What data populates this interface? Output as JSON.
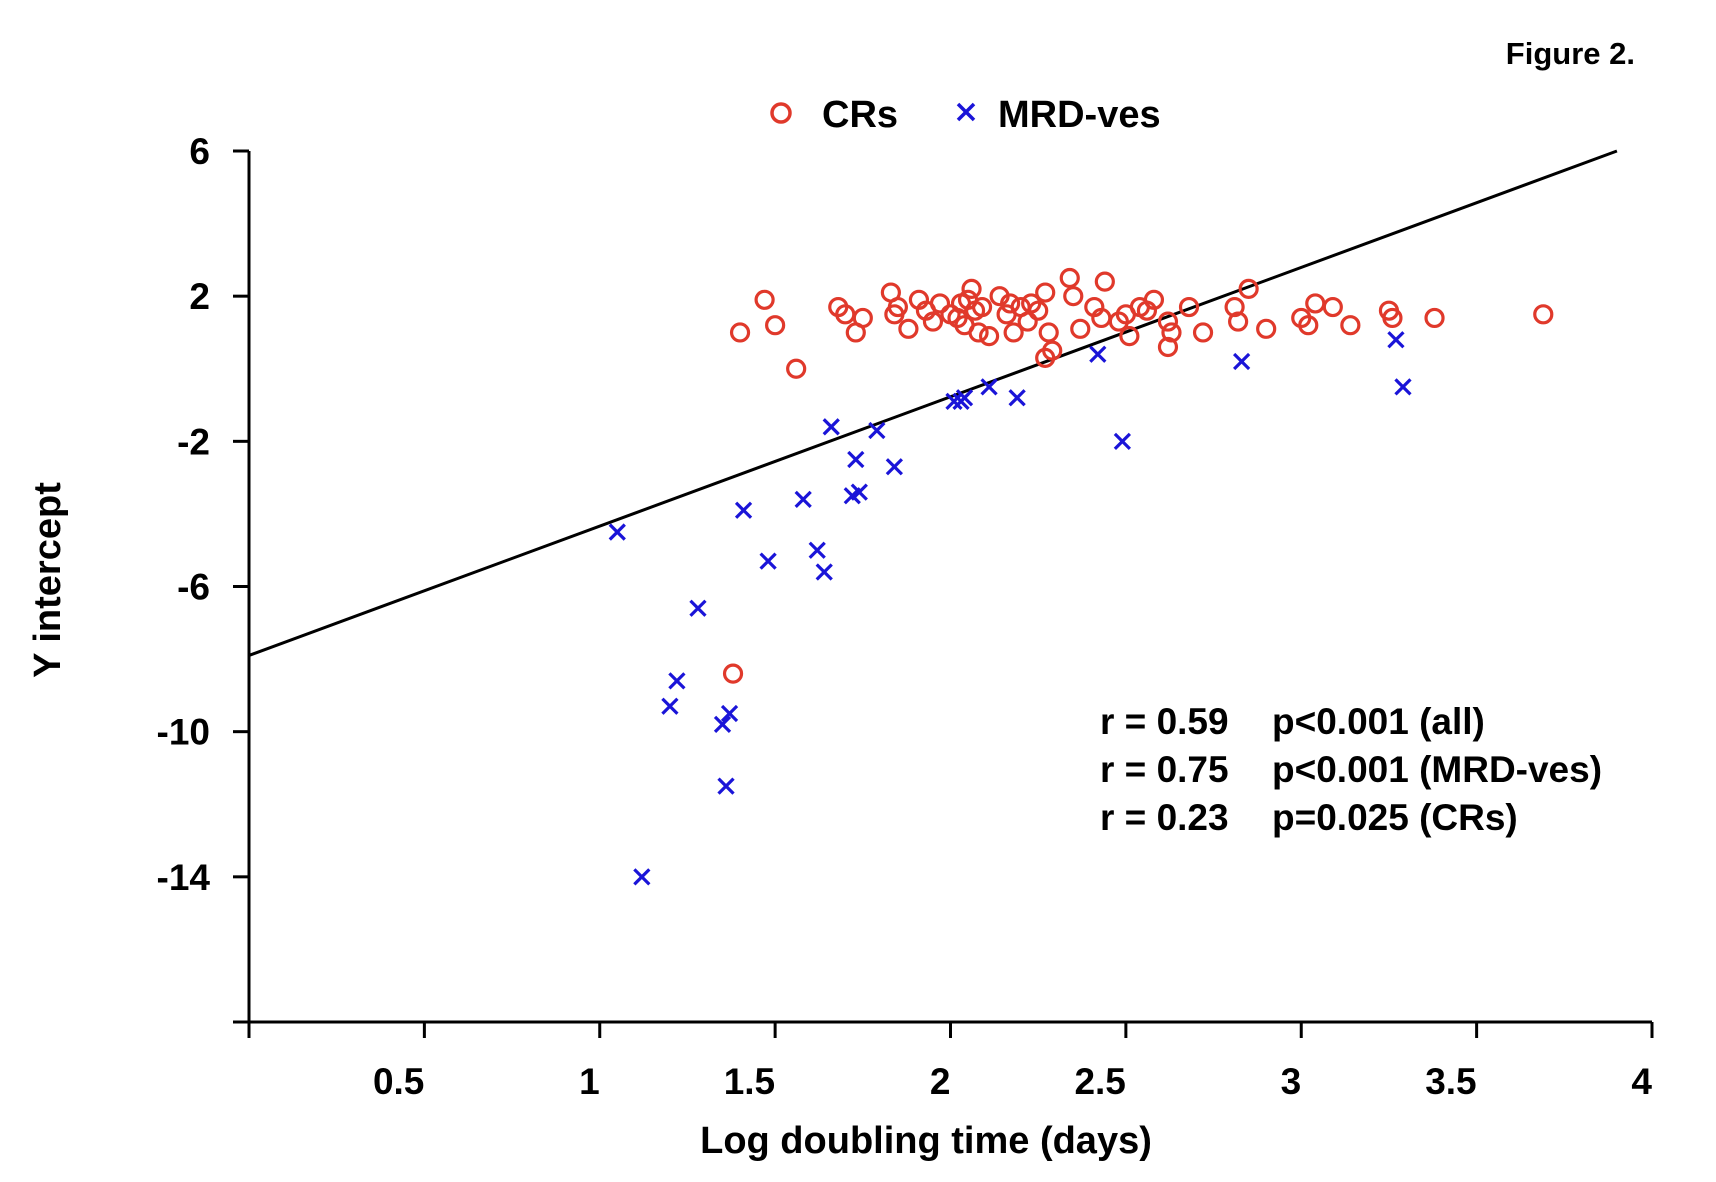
{
  "figure_label": "Figure 2.",
  "chart_data": {
    "type": "scatter",
    "xlabel": "Log doubling time (days)",
    "ylabel": "Y intercept",
    "xlim": [
      0,
      4
    ],
    "ylim": [
      -18,
      6
    ],
    "x_ticks": [
      0,
      0.5,
      1,
      1.5,
      2,
      2.5,
      3,
      3.5,
      4
    ],
    "x_tick_labels": [
      "",
      "0.5",
      "1",
      "1.5",
      "2",
      "2.5",
      "3",
      "3.5",
      "4"
    ],
    "y_ticks": [
      -18,
      -14,
      -10,
      -6,
      -2,
      2,
      6
    ],
    "y_tick_labels": [
      "",
      "-14",
      "-10",
      "-6",
      "-2",
      "2",
      "6"
    ],
    "grid": false,
    "legend_position": "top-center",
    "series": [
      {
        "name": "CRs",
        "marker": "circle",
        "color": "#e0392b",
        "points": [
          [
            1.38,
            -8.4
          ],
          [
            1.4,
            1.0
          ],
          [
            1.47,
            1.9
          ],
          [
            1.5,
            1.2
          ],
          [
            1.56,
            0.0
          ],
          [
            1.68,
            1.7
          ],
          [
            1.7,
            1.5
          ],
          [
            1.73,
            1.0
          ],
          [
            1.75,
            1.4
          ],
          [
            1.83,
            2.1
          ],
          [
            1.84,
            1.5
          ],
          [
            1.85,
            1.7
          ],
          [
            1.88,
            1.1
          ],
          [
            1.91,
            1.9
          ],
          [
            1.93,
            1.6
          ],
          [
            1.95,
            1.3
          ],
          [
            1.97,
            1.8
          ],
          [
            2.0,
            1.5
          ],
          [
            2.02,
            1.4
          ],
          [
            2.03,
            1.8
          ],
          [
            2.04,
            1.2
          ],
          [
            2.05,
            1.9
          ],
          [
            2.06,
            2.2
          ],
          [
            2.07,
            1.6
          ],
          [
            2.08,
            1.0
          ],
          [
            2.09,
            1.7
          ],
          [
            2.11,
            0.9
          ],
          [
            2.14,
            2.0
          ],
          [
            2.16,
            1.5
          ],
          [
            2.17,
            1.8
          ],
          [
            2.18,
            1.0
          ],
          [
            2.2,
            1.7
          ],
          [
            2.22,
            1.3
          ],
          [
            2.23,
            1.8
          ],
          [
            2.25,
            1.6
          ],
          [
            2.27,
            2.1
          ],
          [
            2.28,
            1.0
          ],
          [
            2.29,
            0.5
          ],
          [
            2.27,
            0.3
          ],
          [
            2.34,
            2.5
          ],
          [
            2.35,
            2.0
          ],
          [
            2.37,
            1.1
          ],
          [
            2.41,
            1.7
          ],
          [
            2.43,
            1.4
          ],
          [
            2.44,
            2.4
          ],
          [
            2.48,
            1.3
          ],
          [
            2.5,
            1.5
          ],
          [
            2.51,
            0.9
          ],
          [
            2.54,
            1.7
          ],
          [
            2.56,
            1.6
          ],
          [
            2.58,
            1.9
          ],
          [
            2.62,
            1.3
          ],
          [
            2.63,
            1.0
          ],
          [
            2.62,
            0.6
          ],
          [
            2.68,
            1.7
          ],
          [
            2.72,
            1.0
          ],
          [
            2.81,
            1.7
          ],
          [
            2.82,
            1.3
          ],
          [
            2.85,
            2.2
          ],
          [
            2.9,
            1.1
          ],
          [
            3.0,
            1.4
          ],
          [
            3.02,
            1.2
          ],
          [
            3.04,
            1.8
          ],
          [
            3.09,
            1.7
          ],
          [
            3.14,
            1.2
          ],
          [
            3.25,
            1.6
          ],
          [
            3.26,
            1.4
          ],
          [
            3.38,
            1.4
          ],
          [
            3.69,
            1.5
          ]
        ]
      },
      {
        "name": "MRD-ves",
        "marker": "x",
        "color": "#1a14d8",
        "points": [
          [
            1.05,
            -4.5
          ],
          [
            1.12,
            -14.0
          ],
          [
            1.2,
            -9.3
          ],
          [
            1.22,
            -8.6
          ],
          [
            1.28,
            -6.6
          ],
          [
            1.35,
            -9.8
          ],
          [
            1.37,
            -9.5
          ],
          [
            1.36,
            -11.5
          ],
          [
            1.41,
            -3.9
          ],
          [
            1.48,
            -5.3
          ],
          [
            1.58,
            -3.6
          ],
          [
            1.62,
            -5.0
          ],
          [
            1.64,
            -5.6
          ],
          [
            1.66,
            -1.6
          ],
          [
            1.73,
            -2.5
          ],
          [
            1.72,
            -3.5
          ],
          [
            1.74,
            -3.4
          ],
          [
            1.79,
            -1.7
          ],
          [
            1.84,
            -2.7
          ],
          [
            2.01,
            -0.9
          ],
          [
            2.03,
            -0.9
          ],
          [
            2.04,
            -0.8
          ],
          [
            2.11,
            -0.5
          ],
          [
            2.19,
            -0.8
          ],
          [
            2.42,
            0.4
          ],
          [
            2.49,
            -2.0
          ],
          [
            2.83,
            0.2
          ],
          [
            3.27,
            0.8
          ],
          [
            3.29,
            -0.5
          ]
        ]
      }
    ],
    "regression_line": {
      "x": [
        0,
        3.9
      ],
      "y": [
        -7.9,
        6.0
      ]
    },
    "annotations": [
      {
        "r": "r = 0.59",
        "p": "p<0.001 (all)"
      },
      {
        "r": "r = 0.75",
        "p": "p<0.001 (MRD-ves)"
      },
      {
        "r": "r = 0.23",
        "p": "p=0.025 (CRs)"
      }
    ]
  }
}
